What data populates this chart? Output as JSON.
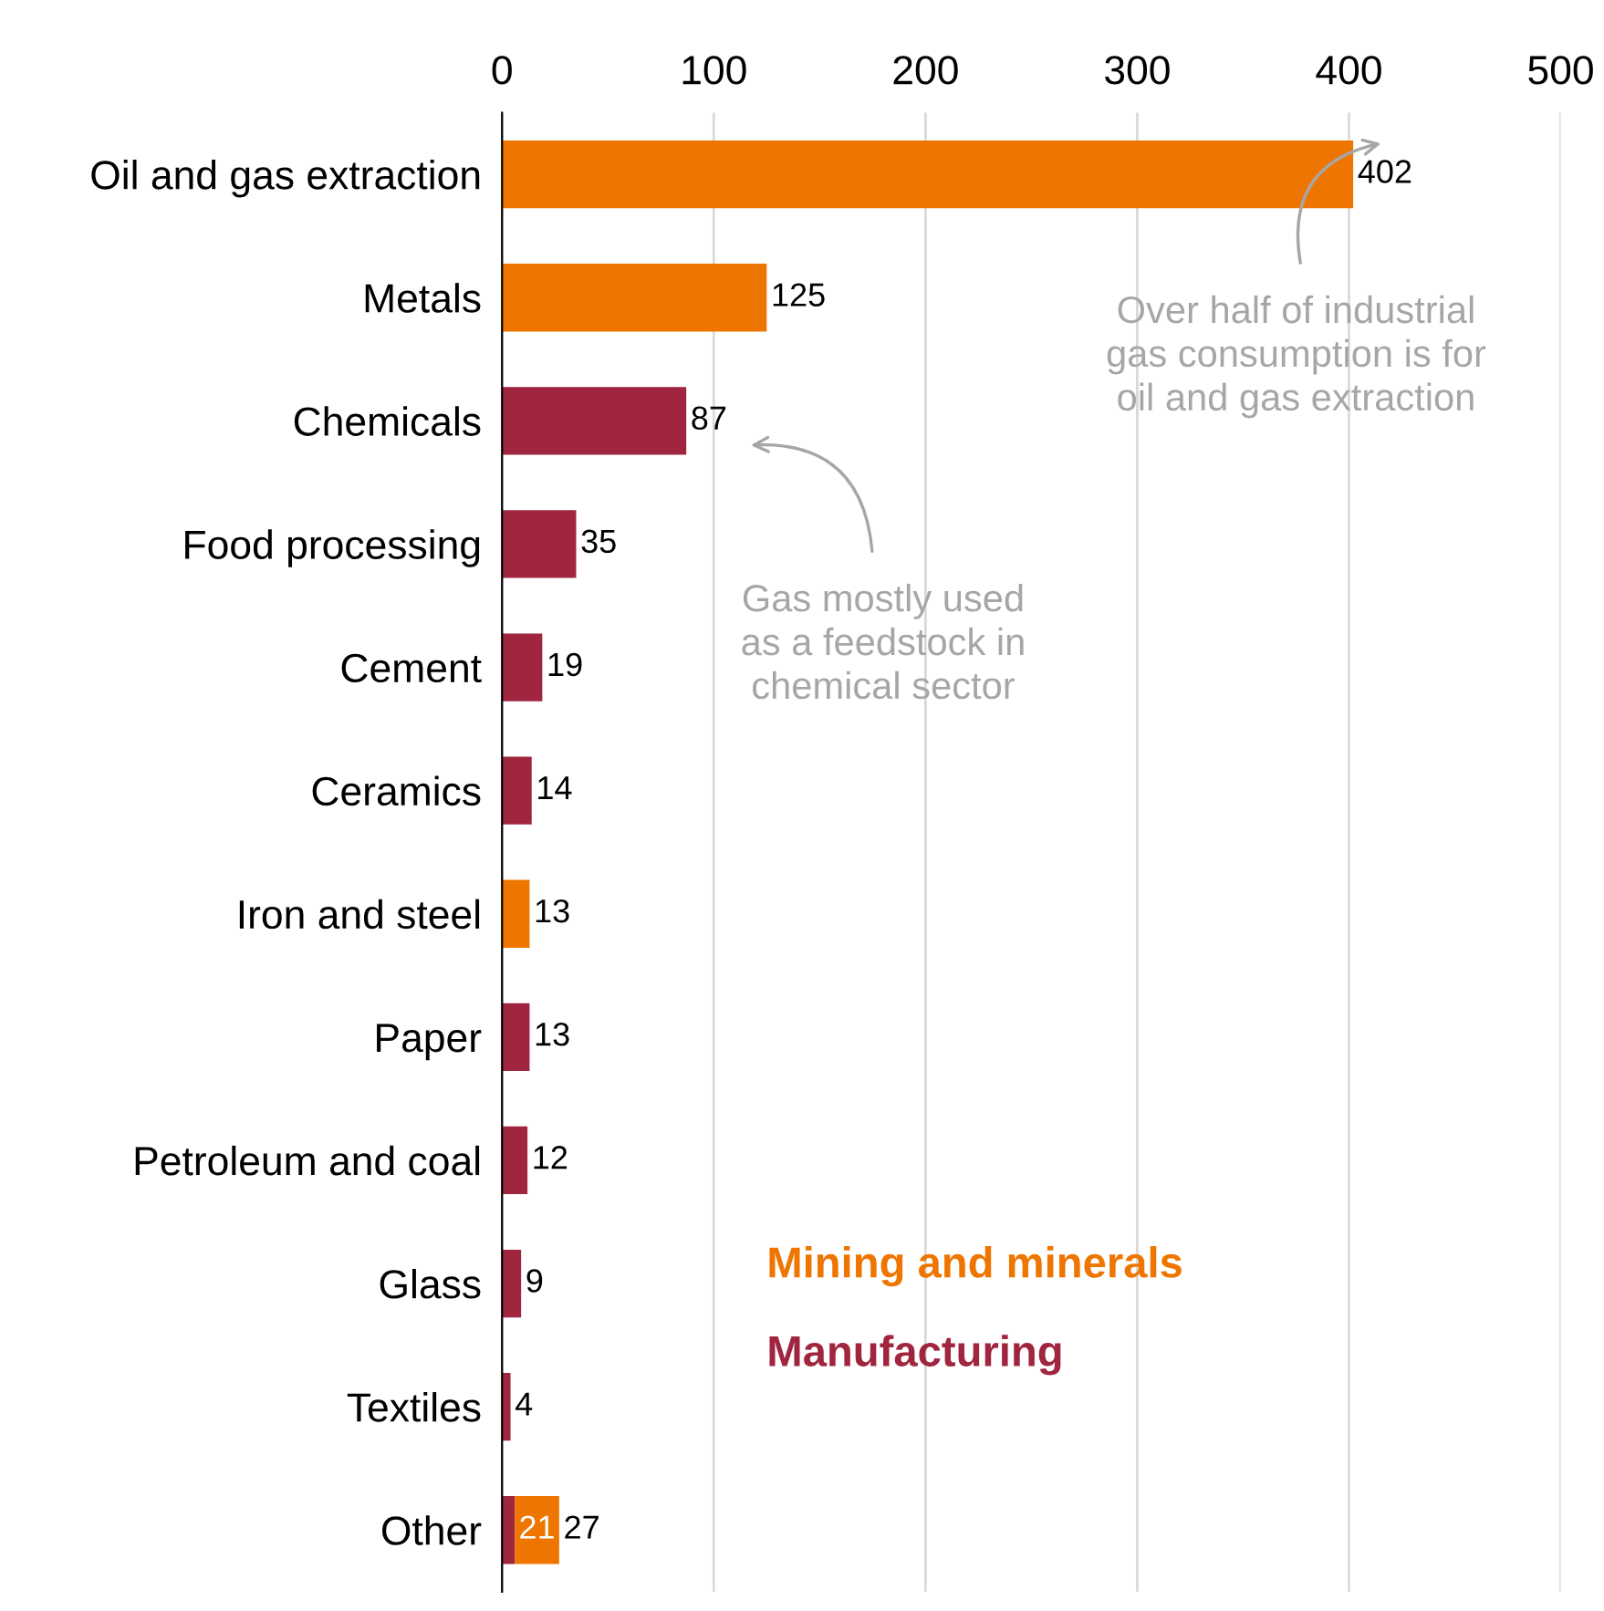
{
  "chart_data": {
    "type": "bar",
    "orientation": "horizontal",
    "stacked": true,
    "categories": [
      "Oil and gas extraction",
      "Metals",
      "Chemicals",
      "Food processing",
      "Cement",
      "Ceramics",
      "Iron and steel",
      "Paper",
      "Petroleum and coal",
      "Glass",
      "Textiles",
      "Other"
    ],
    "series": [
      {
        "name": "Manufacturing",
        "color": "#a0253f",
        "values": [
          null,
          null,
          87,
          35,
          19,
          14,
          null,
          13,
          12,
          9,
          4,
          6
        ]
      },
      {
        "name": "Mining and minerals",
        "color": "#ee7600",
        "values": [
          402,
          125,
          null,
          null,
          null,
          null,
          13,
          null,
          null,
          null,
          null,
          21
        ],
        "value_labels": [
          null,
          null,
          null,
          null,
          null,
          null,
          null,
          null,
          null,
          null,
          null,
          "21"
        ]
      }
    ],
    "totals": [
      "402",
      "125",
      "87",
      "35",
      "19",
      "14",
      "13",
      "13",
      "12",
      "9",
      "4",
      "27"
    ],
    "xlim": [
      0,
      500
    ],
    "xticks": [
      0,
      100,
      200,
      300,
      400,
      500
    ],
    "grid": "x",
    "legend": "bottom",
    "annotations": [
      "Over half of industrial\ngas consumption is for\noil and gas extraction",
      "Gas mostly used\nas a feedstock in\nchemical sector"
    ]
  }
}
